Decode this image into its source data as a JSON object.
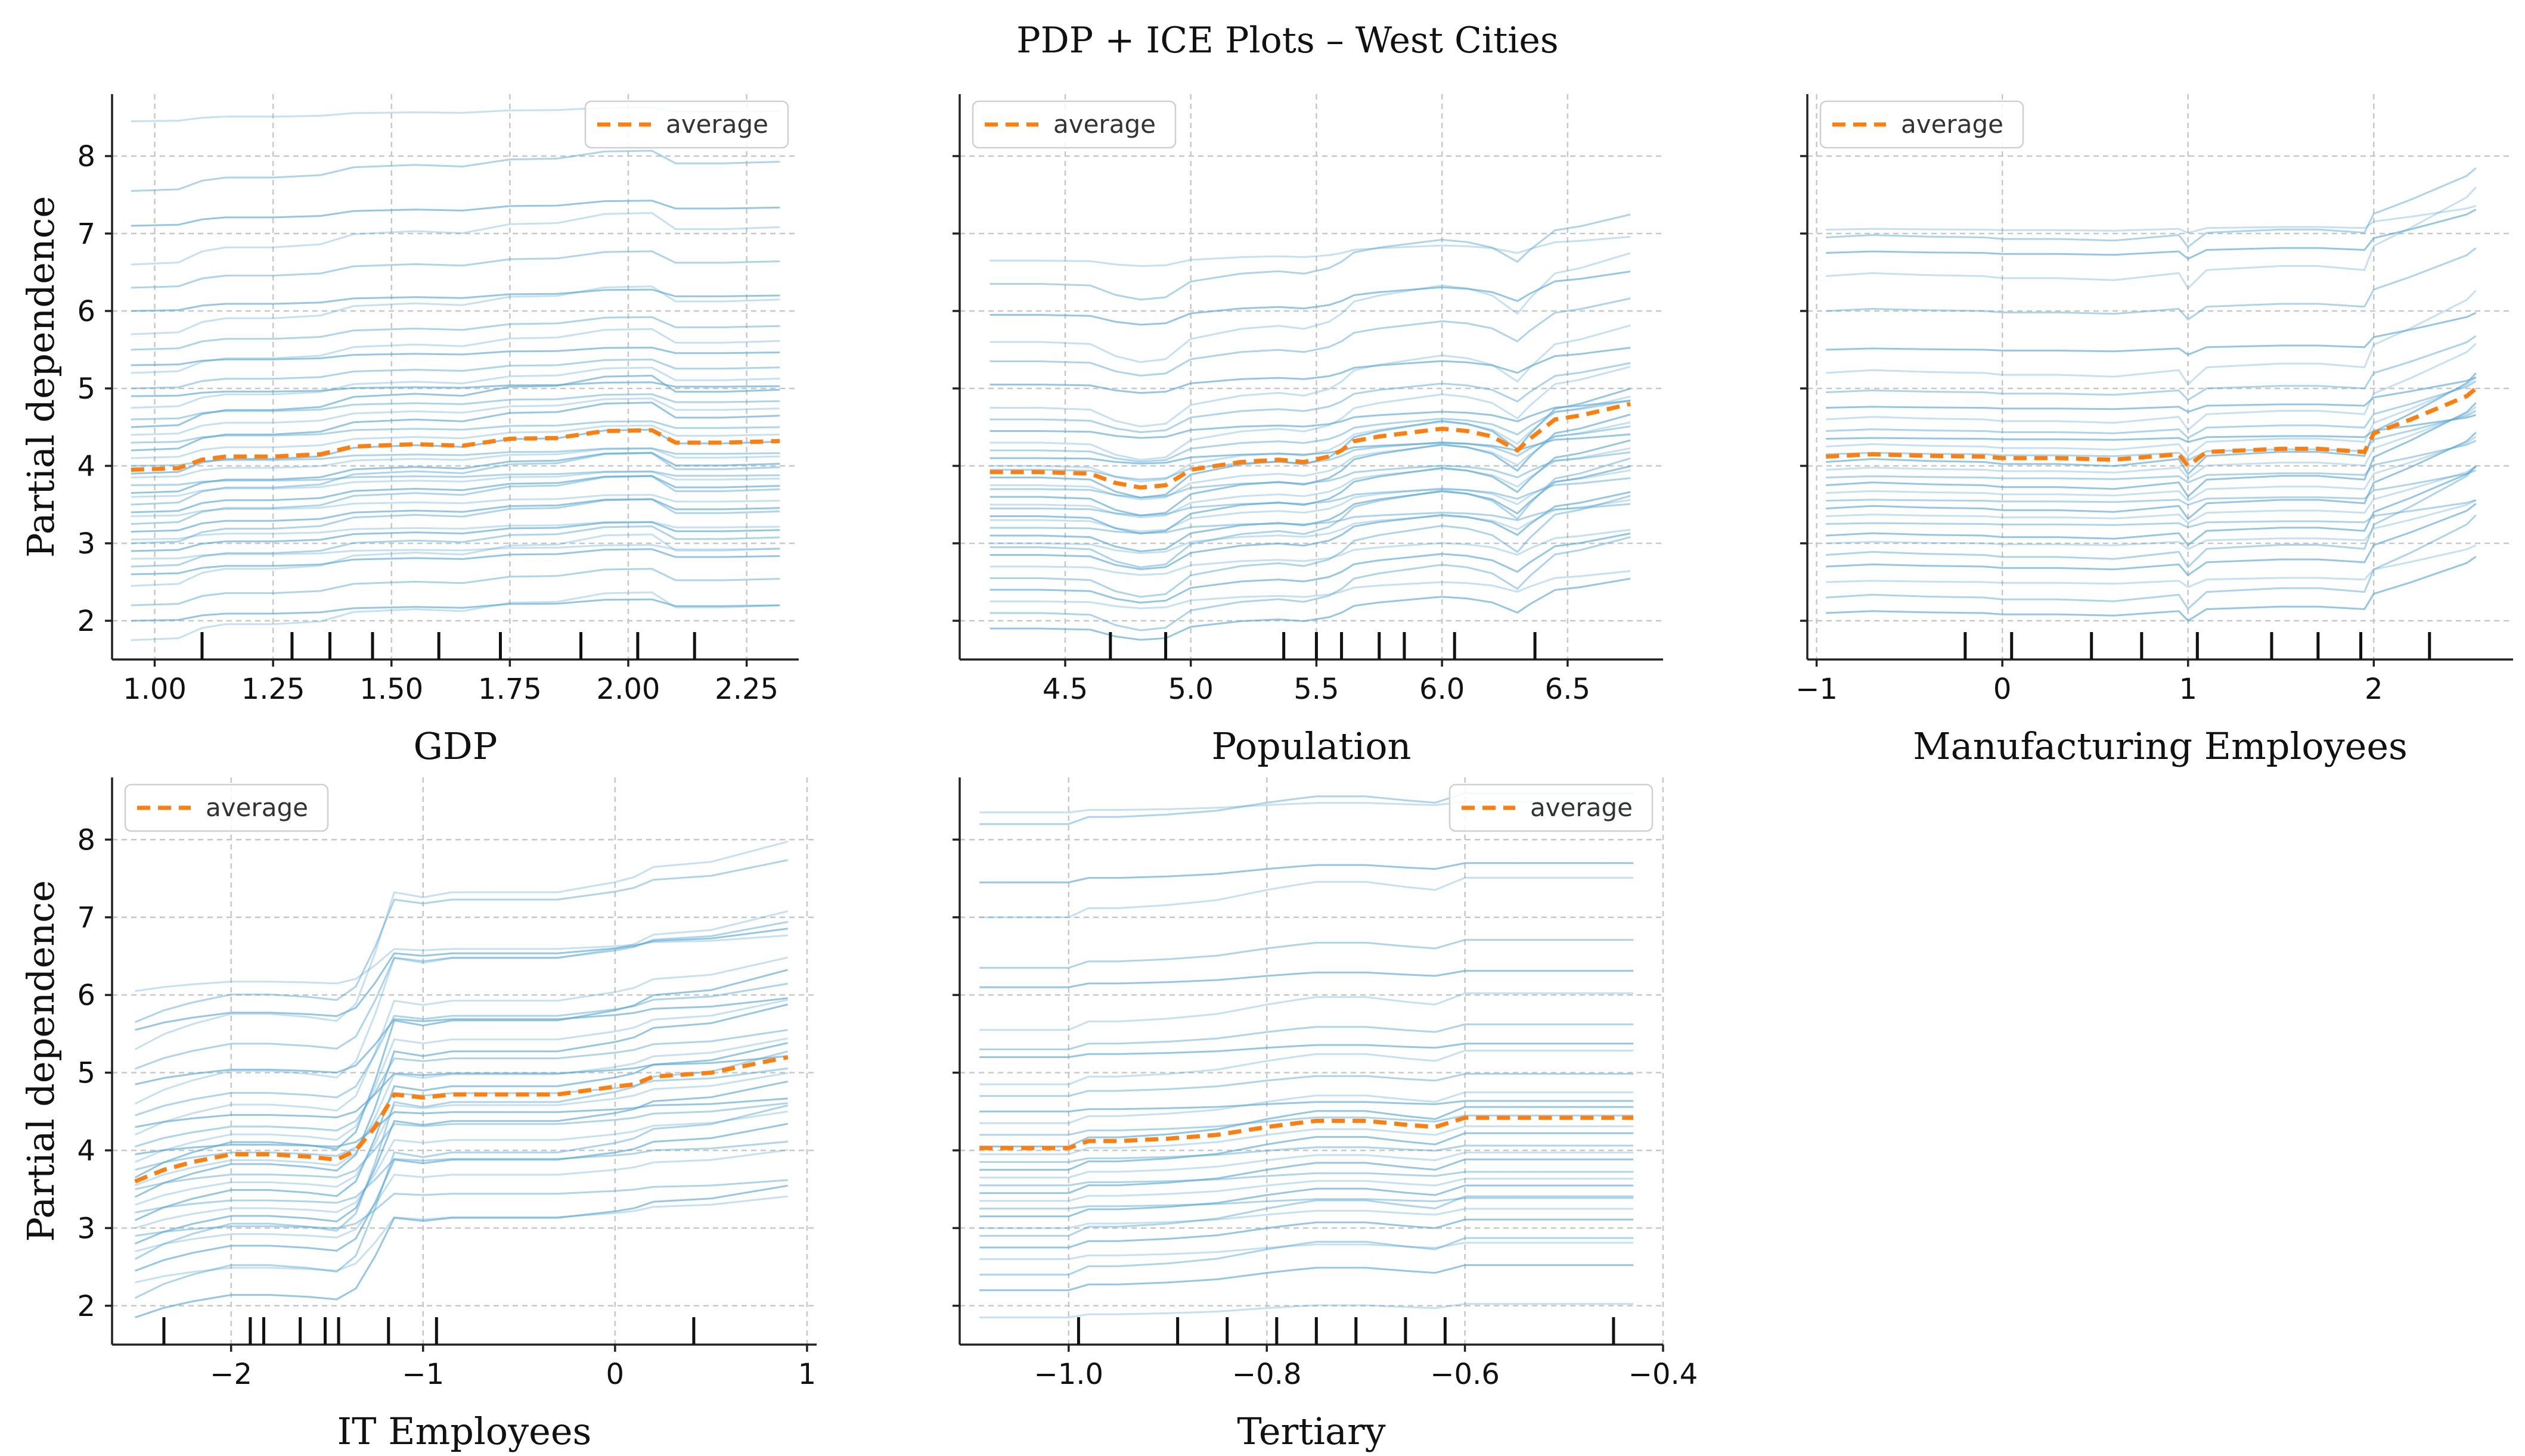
{
  "title": "PDP + ICE Plots – West Cities",
  "colors": {
    "ice": "#5aa9d6",
    "average": "#ff7f0e",
    "grid": "#c8c8c8",
    "axis": "#222222",
    "rug": "#111111"
  },
  "chart_data": [
    {
      "type": "line",
      "title": "GDP",
      "xlabel": "GDP",
      "ylabel": "Partial dependence",
      "xlim": [
        0.91,
        2.36
      ],
      "ylim": [
        1.5,
        8.8
      ],
      "xticks": [
        1.0,
        1.25,
        1.5,
        1.75,
        2.0,
        2.25
      ],
      "xtick_labels": [
        "1.00",
        "1.25",
        "1.50",
        "1.75",
        "2.00",
        "2.25"
      ],
      "yticks": [
        2,
        3,
        4,
        5,
        6,
        7,
        8
      ],
      "ytick_labels": [
        "2",
        "3",
        "4",
        "5",
        "6",
        "7",
        "8"
      ],
      "legend": {
        "label": "average",
        "location": "upper right"
      },
      "average": {
        "x": [
          0.95,
          1.05,
          1.1,
          1.15,
          1.25,
          1.35,
          1.42,
          1.55,
          1.65,
          1.75,
          1.85,
          1.95,
          2.05,
          2.1,
          2.2,
          2.32
        ],
        "y": [
          3.95,
          3.97,
          4.08,
          4.12,
          4.12,
          4.15,
          4.25,
          4.28,
          4.26,
          4.35,
          4.36,
          4.45,
          4.46,
          4.3,
          4.3,
          4.32
        ]
      },
      "ice_profile": {
        "x": [
          0.95,
          1.05,
          1.1,
          1.15,
          1.25,
          1.35,
          1.42,
          1.55,
          1.65,
          1.75,
          1.85,
          1.95,
          2.05,
          2.1,
          2.2,
          2.32
        ],
        "d": [
          0,
          0.02,
          0.13,
          0.17,
          0.17,
          0.2,
          0.3,
          0.33,
          0.31,
          0.4,
          0.41,
          0.5,
          0.51,
          0.35,
          0.35,
          0.37
        ]
      },
      "ice_starts": [
        8.45,
        7.55,
        7.1,
        6.6,
        6.3,
        6.0,
        5.7,
        5.5,
        5.3,
        5.2,
        5.0,
        4.9,
        4.75,
        4.6,
        4.5,
        4.4,
        4.3,
        4.2,
        4.1,
        4.0,
        3.9,
        3.85,
        3.75,
        3.65,
        3.6,
        3.5,
        3.4,
        3.35,
        3.25,
        3.15,
        3.05,
        3.0,
        2.9,
        2.8,
        2.7,
        2.6,
        2.45,
        2.2,
        2.0,
        1.75
      ],
      "rug": [
        1.1,
        1.29,
        1.37,
        1.46,
        1.6,
        1.73,
        1.9,
        2.02,
        2.14
      ]
    },
    {
      "type": "line",
      "title": "Population",
      "xlabel": "Population",
      "ylabel": "",
      "xlim": [
        4.08,
        6.88
      ],
      "ylim": [
        1.5,
        8.8
      ],
      "xticks": [
        4.5,
        5.0,
        5.5,
        6.0,
        6.5
      ],
      "xtick_labels": [
        "4.5",
        "5.0",
        "5.5",
        "6.0",
        "6.5"
      ],
      "yticks": [
        2,
        3,
        4,
        5,
        6,
        7,
        8
      ],
      "ytick_labels": [
        "",
        "",
        "",
        "",
        "",
        "",
        ""
      ],
      "legend": {
        "label": "average",
        "location": "upper left"
      },
      "average": {
        "x": [
          4.2,
          4.4,
          4.6,
          4.7,
          4.8,
          4.9,
          5.0,
          5.1,
          5.2,
          5.35,
          5.45,
          5.55,
          5.6,
          5.65,
          5.75,
          5.85,
          6.0,
          6.1,
          6.2,
          6.3,
          6.35,
          6.45,
          6.55,
          6.75
        ],
        "y": [
          3.92,
          3.92,
          3.9,
          3.78,
          3.72,
          3.75,
          3.95,
          4.0,
          4.05,
          4.08,
          4.05,
          4.12,
          4.2,
          4.32,
          4.38,
          4.42,
          4.48,
          4.45,
          4.38,
          4.2,
          4.35,
          4.6,
          4.65,
          4.8
        ]
      },
      "ice_profile": {
        "x": [
          4.2,
          4.4,
          4.6,
          4.7,
          4.8,
          4.9,
          5.0,
          5.1,
          5.2,
          5.35,
          5.45,
          5.55,
          5.6,
          5.65,
          5.75,
          5.85,
          6.0,
          6.1,
          6.2,
          6.3,
          6.35,
          6.45,
          6.55,
          6.75
        ],
        "d": [
          0,
          0,
          -0.02,
          -0.14,
          -0.2,
          -0.17,
          0.03,
          0.08,
          0.13,
          0.16,
          0.13,
          0.2,
          0.28,
          0.4,
          0.46,
          0.5,
          0.56,
          0.53,
          0.46,
          0.28,
          0.43,
          0.68,
          0.73,
          0.88
        ]
      },
      "ice_starts": [
        6.65,
        6.35,
        5.95,
        5.6,
        5.35,
        5.05,
        4.75,
        4.6,
        4.45,
        4.3,
        4.2,
        4.1,
        4.0,
        3.95,
        3.85,
        3.75,
        3.7,
        3.6,
        3.5,
        3.45,
        3.35,
        3.3,
        3.2,
        3.1,
        3.0,
        2.95,
        2.85,
        2.7,
        2.55,
        2.4,
        2.25,
        2.1,
        1.9
      ],
      "rug": [
        4.68,
        4.9,
        5.37,
        5.5,
        5.6,
        5.75,
        5.85,
        6.05,
        6.37
      ]
    },
    {
      "type": "line",
      "title": "Manufacturing Employees",
      "xlabel": "Manufacturing Employees",
      "ylabel": "",
      "xlim": [
        -1.05,
        2.75
      ],
      "ylim": [
        1.5,
        8.8
      ],
      "xticks": [
        -1,
        0,
        1,
        2
      ],
      "xtick_labels": [
        "−1",
        "0",
        "1",
        "2"
      ],
      "yticks": [
        2,
        3,
        4,
        5,
        6,
        7,
        8
      ],
      "ytick_labels": [
        "",
        "",
        "",
        "",
        "",
        "",
        ""
      ],
      "legend": {
        "label": "average",
        "location": "upper left"
      },
      "average": {
        "x": [
          -0.95,
          -0.7,
          -0.4,
          -0.1,
          0.0,
          0.3,
          0.6,
          0.8,
          0.95,
          1.0,
          1.1,
          1.3,
          1.5,
          1.7,
          1.95,
          2.0,
          2.2,
          2.35,
          2.5,
          2.55
        ],
        "y": [
          4.12,
          4.15,
          4.13,
          4.12,
          4.1,
          4.1,
          4.08,
          4.12,
          4.15,
          4.0,
          4.18,
          4.2,
          4.22,
          4.22,
          4.18,
          4.42,
          4.6,
          4.75,
          4.9,
          5.0
        ]
      },
      "ice_profile": {
        "x": [
          -0.95,
          -0.7,
          -0.4,
          -0.1,
          0.0,
          0.3,
          0.6,
          0.8,
          0.95,
          1.0,
          1.1,
          1.3,
          1.5,
          1.7,
          1.95,
          2.0,
          2.2,
          2.35,
          2.5,
          2.55
        ],
        "d": [
          0,
          0.03,
          0.01,
          0,
          -0.02,
          -0.02,
          -0.04,
          0,
          0.03,
          -0.12,
          0.06,
          0.08,
          0.1,
          0.1,
          0.06,
          0.3,
          0.48,
          0.63,
          0.78,
          0.88
        ]
      },
      "ice_starts": [
        7.05,
        6.95,
        6.75,
        6.45,
        6.0,
        5.5,
        5.2,
        4.95,
        4.75,
        4.6,
        4.45,
        4.35,
        4.25,
        4.15,
        4.05,
        3.95,
        3.85,
        3.75,
        3.65,
        3.55,
        3.45,
        3.35,
        3.25,
        3.1,
        3.0,
        2.85,
        2.7,
        2.5,
        2.3,
        2.1
      ],
      "rug": [
        -0.2,
        0.05,
        0.48,
        0.75,
        1.05,
        1.45,
        1.7,
        1.93,
        2.3
      ]
    },
    {
      "type": "line",
      "title": "IT Employees",
      "xlabel": "IT Employees",
      "ylabel": "Partial dependence",
      "xlim": [
        -2.62,
        1.05
      ],
      "ylim": [
        1.5,
        8.8
      ],
      "xticks": [
        -2,
        -1,
        0,
        1
      ],
      "xtick_labels": [
        "−2",
        "−1",
        "0",
        "1"
      ],
      "yticks": [
        2,
        3,
        4,
        5,
        6,
        7,
        8
      ],
      "ytick_labels": [
        "2",
        "3",
        "4",
        "5",
        "6",
        "7",
        "8"
      ],
      "legend": {
        "label": "average",
        "location": "upper left"
      },
      "average": {
        "x": [
          -2.5,
          -2.35,
          -2.2,
          -2.0,
          -1.8,
          -1.6,
          -1.45,
          -1.35,
          -1.25,
          -1.15,
          -1.0,
          -0.85,
          -0.6,
          -0.3,
          0.0,
          0.1,
          0.2,
          0.5,
          0.7,
          0.9
        ],
        "y": [
          3.6,
          3.75,
          3.85,
          3.95,
          3.95,
          3.92,
          3.88,
          4.0,
          4.3,
          4.72,
          4.68,
          4.72,
          4.72,
          4.72,
          4.82,
          4.85,
          4.95,
          5.0,
          5.1,
          5.2
        ]
      },
      "ice_profile": {
        "x": [
          -2.5,
          -2.35,
          -2.2,
          -2.0,
          -1.8,
          -1.6,
          -1.45,
          -1.35,
          -1.25,
          -1.15,
          -1.0,
          -0.85,
          -0.6,
          -0.3,
          0.0,
          0.1,
          0.2,
          0.5,
          0.7,
          0.9
        ],
        "d": [
          0,
          0.15,
          0.25,
          0.35,
          0.35,
          0.32,
          0.28,
          0.45,
          0.95,
          1.55,
          1.5,
          1.55,
          1.55,
          1.55,
          1.65,
          1.7,
          1.8,
          1.85,
          1.95,
          2.05
        ]
      },
      "ice_starts": [
        6.05,
        5.65,
        5.55,
        5.3,
        5.05,
        4.85,
        4.6,
        4.45,
        4.3,
        4.2,
        4.05,
        3.95,
        3.85,
        3.75,
        3.65,
        3.55,
        3.5,
        3.4,
        3.3,
        3.2,
        3.1,
        3.0,
        2.9,
        2.8,
        2.7,
        2.6,
        2.45,
        2.3,
        2.1,
        1.85
      ],
      "rug": [
        -2.35,
        -1.9,
        -1.83,
        -1.64,
        -1.51,
        -1.44,
        -1.18,
        -0.93,
        0.41
      ]
    },
    {
      "type": "line",
      "title": "Tertiary",
      "xlabel": "Tertiary",
      "ylabel": "",
      "xlim": [
        -1.11,
        -0.4
      ],
      "ylim": [
        1.5,
        8.8
      ],
      "xticks": [
        -1.0,
        -0.8,
        -0.6,
        -0.4
      ],
      "xtick_labels": [
        "−1.0",
        "−0.8",
        "−0.6",
        "−0.4"
      ],
      "yticks": [
        2,
        3,
        4,
        5,
        6,
        7,
        8
      ],
      "ytick_labels": [
        "",
        "",
        "",
        "",
        "",
        "",
        ""
      ],
      "legend": {
        "label": "average",
        "location": "upper right"
      },
      "average": {
        "x": [
          -1.09,
          -1.05,
          -1.0,
          -0.98,
          -0.95,
          -0.9,
          -0.85,
          -0.8,
          -0.77,
          -0.75,
          -0.7,
          -0.66,
          -0.63,
          -0.6,
          -0.55,
          -0.43
        ],
        "y": [
          4.03,
          4.03,
          4.03,
          4.12,
          4.12,
          4.15,
          4.2,
          4.3,
          4.35,
          4.38,
          4.38,
          4.33,
          4.3,
          4.42,
          4.42,
          4.42
        ]
      },
      "ice_profile": {
        "x": [
          -1.09,
          -1.05,
          -1.0,
          -0.98,
          -0.95,
          -0.9,
          -0.85,
          -0.8,
          -0.77,
          -0.75,
          -0.7,
          -0.66,
          -0.63,
          -0.6,
          -0.55,
          -0.43
        ],
        "d": [
          0,
          0,
          0,
          0.09,
          0.09,
          0.12,
          0.17,
          0.27,
          0.32,
          0.35,
          0.35,
          0.3,
          0.27,
          0.39,
          0.39,
          0.39
        ]
      },
      "ice_starts": [
        8.35,
        8.2,
        7.45,
        7.0,
        6.35,
        6.1,
        5.55,
        5.3,
        5.2,
        4.85,
        4.7,
        4.5,
        4.35,
        4.2,
        4.05,
        3.95,
        3.85,
        3.75,
        3.65,
        3.55,
        3.45,
        3.35,
        3.25,
        3.15,
        3.0,
        2.9,
        2.75,
        2.6,
        2.4,
        2.2,
        1.85
      ],
      "rug": [
        -0.99,
        -0.89,
        -0.84,
        -0.79,
        -0.75,
        -0.71,
        -0.66,
        -0.62,
        -0.45
      ]
    }
  ]
}
